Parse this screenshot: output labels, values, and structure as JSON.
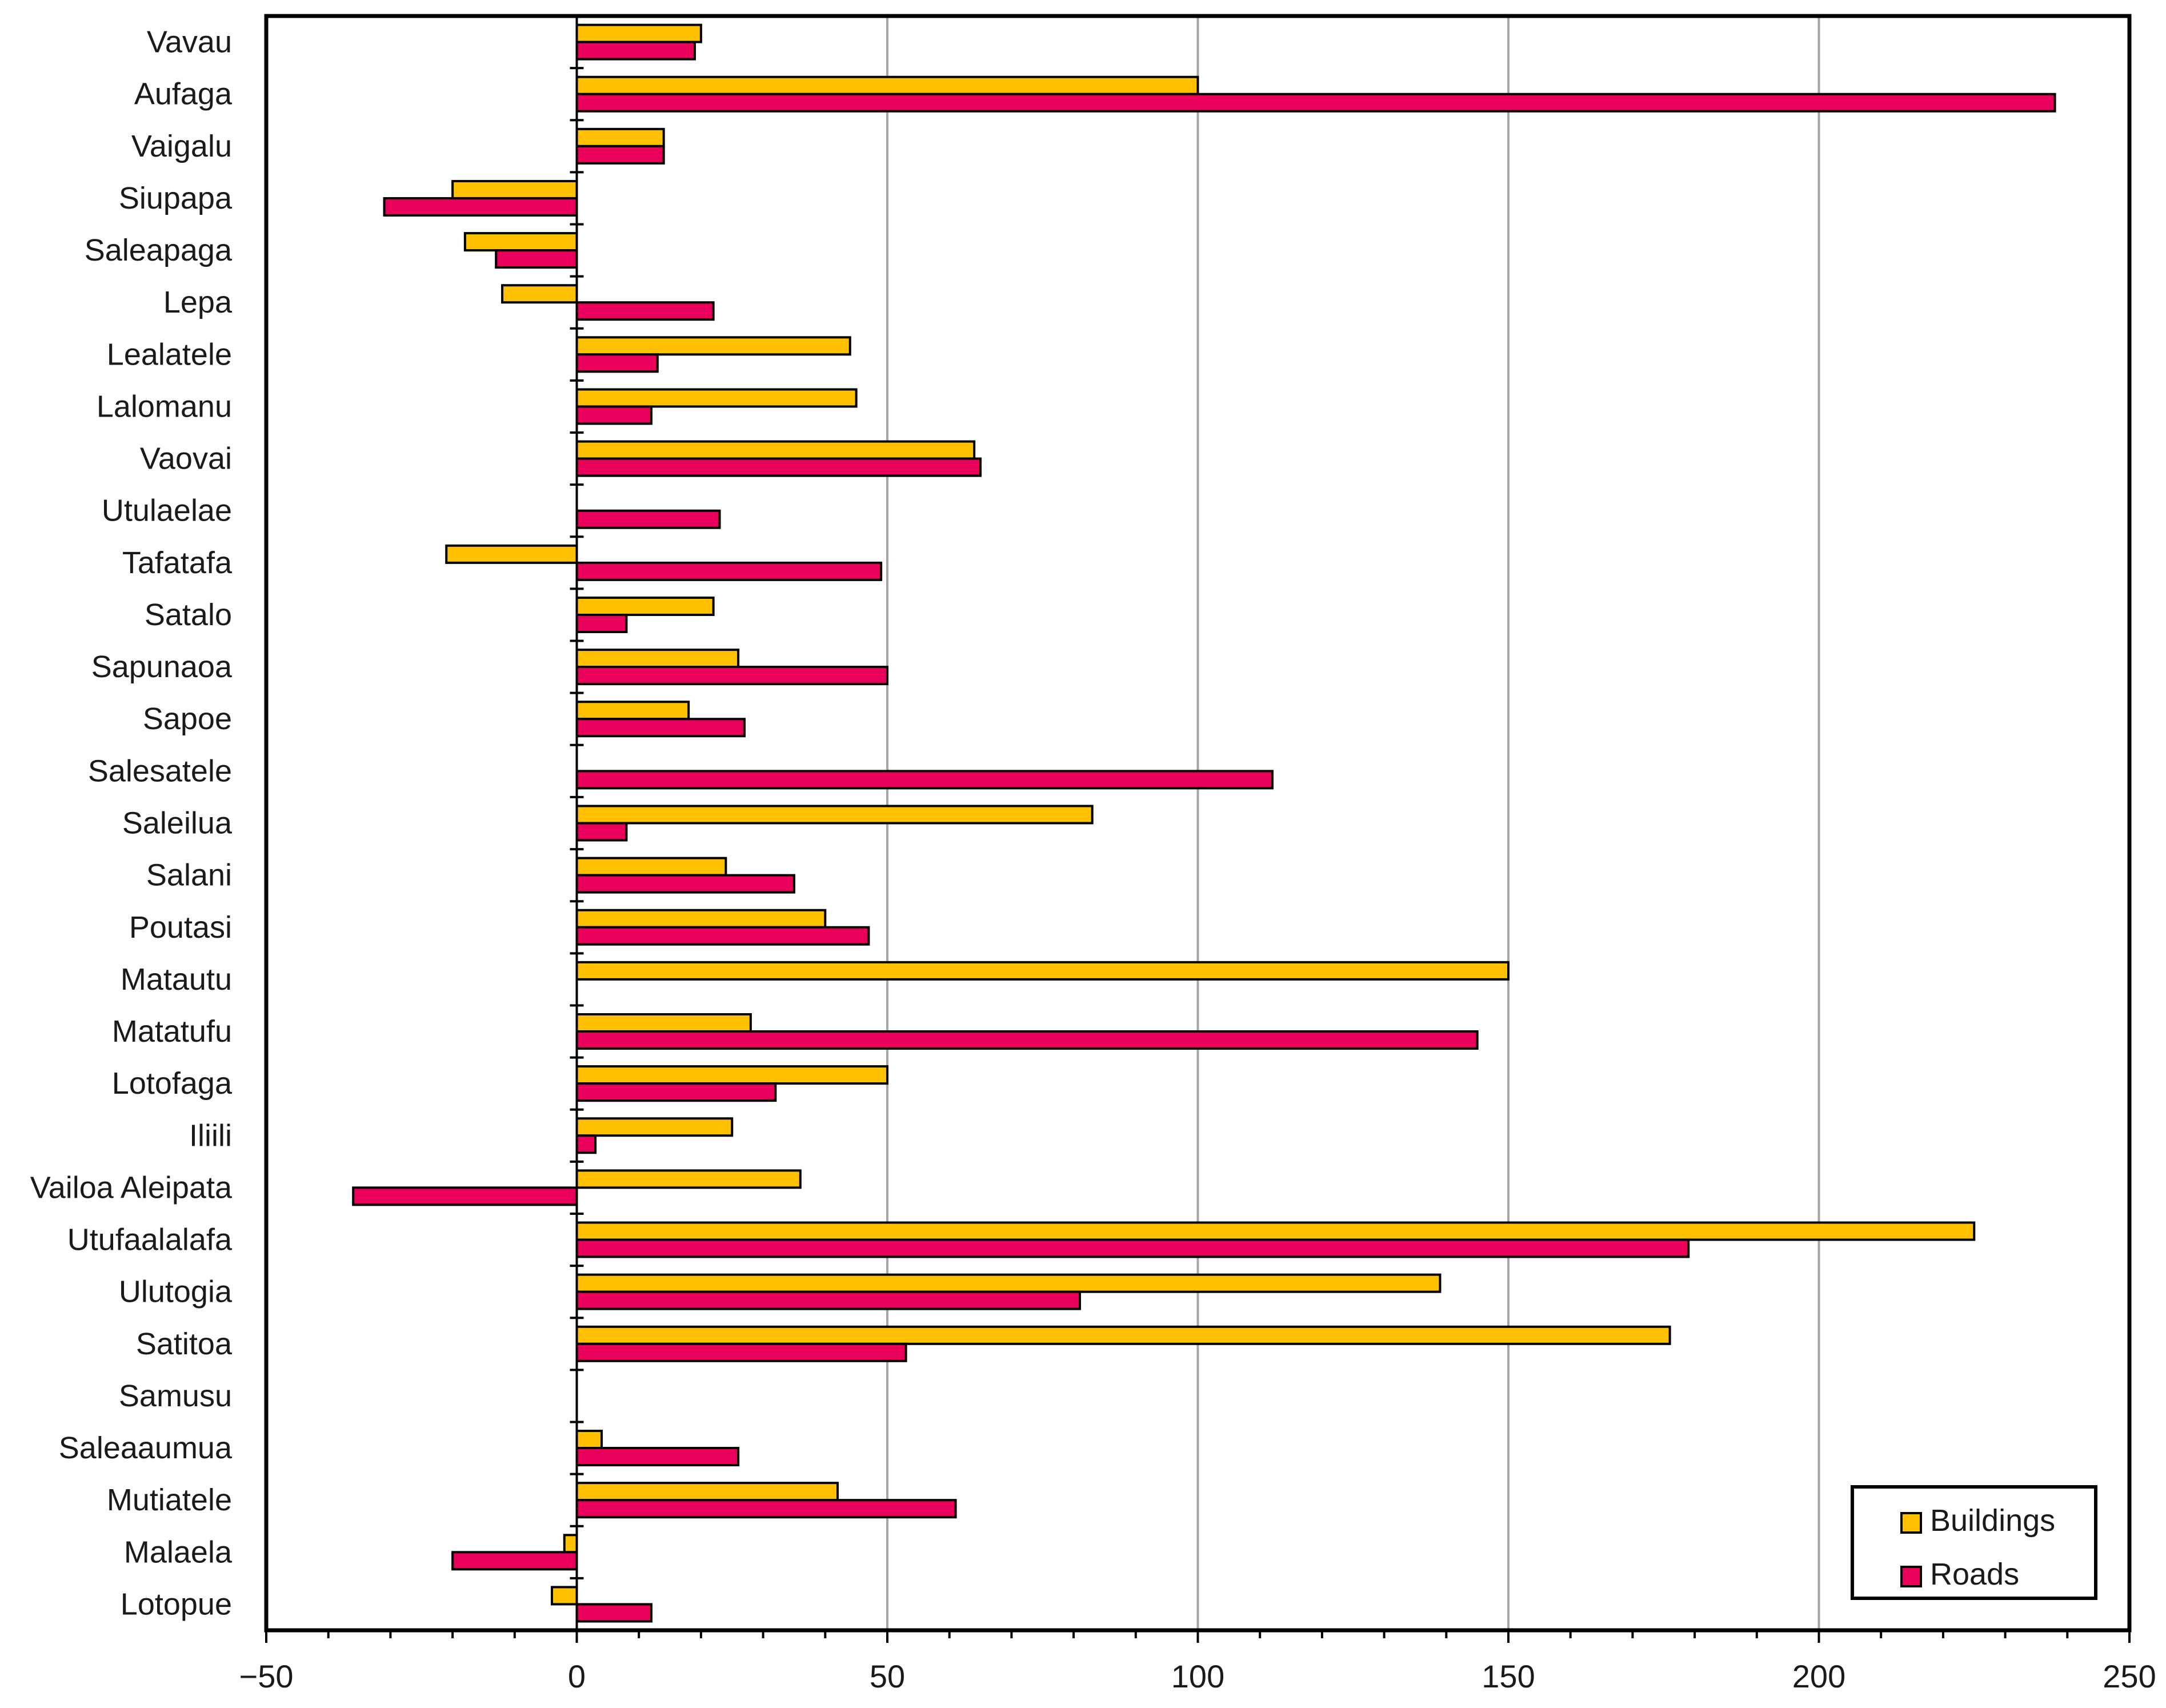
{
  "chart_data": {
    "type": "bar",
    "orientation": "horizontal",
    "title": "",
    "xlabel": "",
    "ylabel": "",
    "xlim": [
      -50,
      250
    ],
    "x_ticks": [
      -50,
      0,
      50,
      100,
      150,
      200,
      250
    ],
    "x_tick_labels": [
      "−50",
      "0",
      "50",
      "100",
      "150",
      "200",
      "250"
    ],
    "minor_tick_step": 10,
    "grid": "vertical major gridlines",
    "legend_position": "bottom-right",
    "categories": [
      "Vavau",
      "Aufaga",
      "Vaigalu",
      "Siupapa",
      "Saleapaga",
      "Lepa",
      "Lealatele",
      "Lalomanu",
      "Vaovai",
      "Utulaelae",
      "Tafatafa",
      "Satalo",
      "Sapunaoa",
      "Sapoe",
      "Salesatele",
      "Saleilua",
      "Salani",
      "Poutasi",
      "Matautu",
      "Matatufu",
      "Lotofaga",
      "Iliili",
      "Vailoa Aleipata",
      "Utufaalalafa",
      "Ulutogia",
      "Satitoa",
      "Samusu",
      "Saleaaumua",
      "Mutiatele",
      "Malaela",
      "Lotopue"
    ],
    "series": [
      {
        "name": "Buildings",
        "color": "#FFC000",
        "values": [
          20,
          100,
          14,
          -20,
          -18,
          -12,
          44,
          45,
          64,
          0,
          -21,
          22,
          26,
          18,
          0,
          83,
          24,
          40,
          150,
          28,
          50,
          25,
          36,
          225,
          139,
          176,
          0,
          4,
          42,
          -2,
          -4
        ]
      },
      {
        "name": "Roads",
        "color": "#E8005A",
        "values": [
          19,
          238,
          14,
          -31,
          -13,
          22,
          13,
          12,
          65,
          23,
          49,
          8,
          50,
          27,
          112,
          8,
          35,
          47,
          0,
          145,
          32,
          3,
          -36,
          179,
          81,
          53,
          0,
          26,
          61,
          -20,
          12
        ]
      }
    ]
  }
}
